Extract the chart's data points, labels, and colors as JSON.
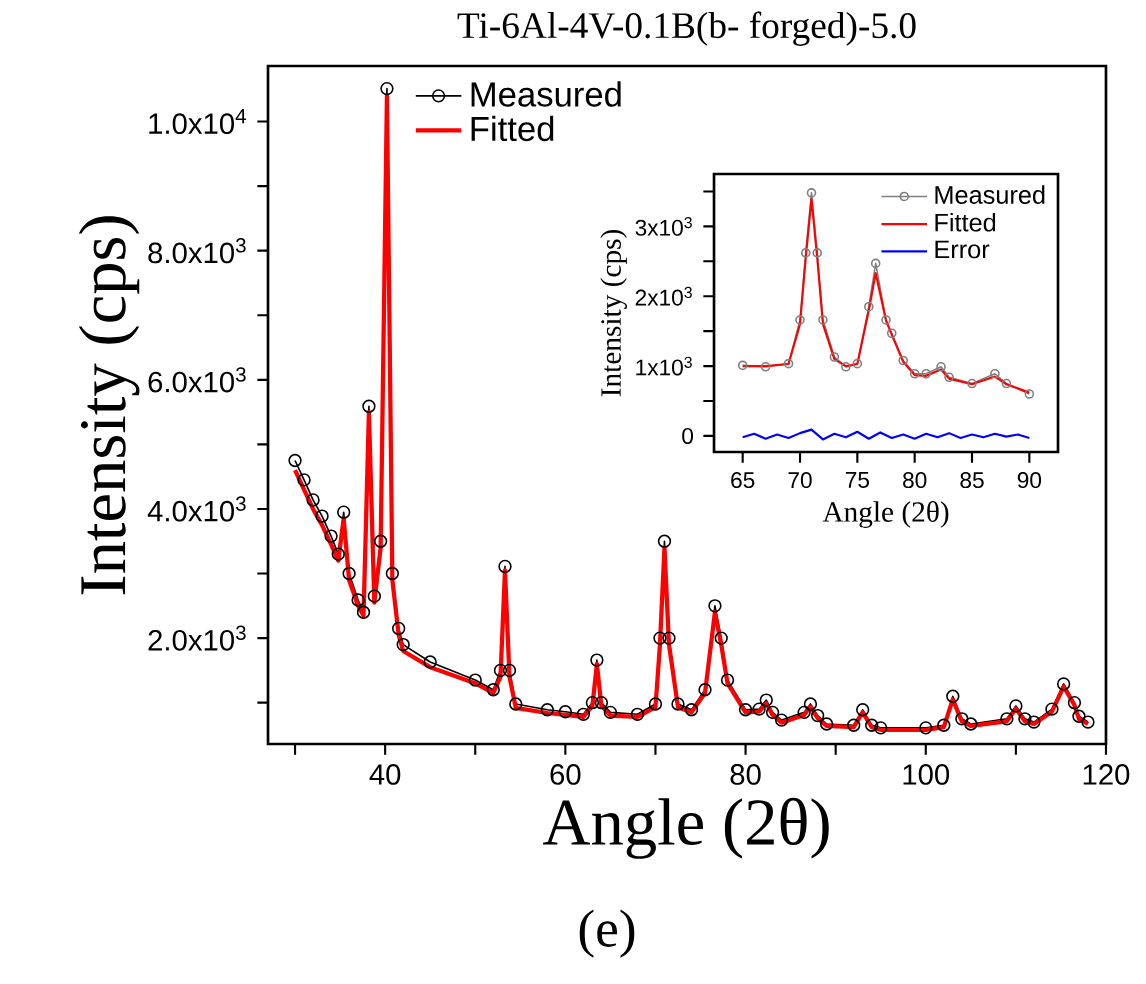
{
  "chart_data": [
    {
      "type": "line",
      "title": "Ti-6Al-4V-0.1B(b- forged)-5.0",
      "xlabel": "Angle (2θ)",
      "ylabel": "Intensity (cps)",
      "annotations": [
        "(e)"
      ],
      "xlim": [
        27,
        120
      ],
      "ylim": [
        360,
        10860
      ],
      "xticks": [
        {
          "value": 30,
          "label": null
        },
        40,
        {
          "value": 50,
          "label": null
        },
        60,
        {
          "value": 70,
          "label": null
        },
        80,
        {
          "value": 90,
          "label": null
        },
        100,
        {
          "value": 110,
          "label": null
        },
        120
      ],
      "yticks": [
        {
          "value": 1000,
          "label": null
        },
        {
          "value": 2000,
          "label": "2.0x10$^{3}$"
        },
        {
          "value": 3000,
          "label": null
        },
        {
          "value": 4000,
          "label": "4.0x10$^{3}$"
        },
        {
          "value": 5000,
          "label": null
        },
        {
          "value": 6000,
          "label": "6.0x10$^{3}$"
        },
        {
          "value": 7000,
          "label": null
        },
        {
          "value": 8000,
          "label": "8.0x10$^{3}$"
        },
        {
          "value": 9000,
          "label": null
        },
        {
          "value": 10000,
          "label": "1.0x10$^{4}$"
        }
      ],
      "legend": "top left",
      "grid": false,
      "series": [
        {
          "name": "Measured",
          "color": "#000000",
          "marker": "circle",
          "x": [
            30,
            31,
            32,
            33,
            34,
            34.8,
            35.4,
            36,
            37,
            37.6,
            38.2,
            38.8,
            39.5,
            40.2,
            40.8,
            41.5,
            42,
            45,
            50,
            52,
            52.8,
            53.3,
            53.8,
            54.5,
            58,
            60,
            62,
            63,
            63.5,
            64,
            65,
            68,
            70,
            70.5,
            71,
            71.5,
            72.5,
            74,
            75.5,
            76.6,
            77.3,
            78,
            80,
            81.5,
            82.3,
            83,
            84,
            86.5,
            87.2,
            88,
            89,
            92,
            93,
            94,
            95,
            100,
            102,
            103,
            104,
            105,
            109,
            110,
            111,
            112,
            114,
            115.3,
            116.5,
            117,
            118
          ],
          "values": [
            4750,
            4450,
            4140,
            3890,
            3580,
            3300,
            3950,
            3000,
            2590,
            2400,
            5590,
            2650,
            3500,
            10510,
            3000,
            2150,
            1900,
            1630,
            1350,
            1200,
            1500,
            3110,
            1500,
            980,
            890,
            860,
            820,
            1000,
            1660,
            1000,
            850,
            820,
            980,
            2000,
            3500,
            2000,
            980,
            890,
            1200,
            2500,
            2000,
            1350,
            890,
            900,
            1040,
            850,
            730,
            850,
            980,
            800,
            670,
            650,
            890,
            650,
            610,
            610,
            650,
            1100,
            750,
            670,
            750,
            950,
            750,
            700,
            900,
            1290,
            1000,
            790,
            700
          ]
        },
        {
          "name": "Fitted",
          "color": "#ff0000",
          "marker": "none",
          "x": [
            30,
            31,
            32,
            33,
            34,
            34.8,
            35.4,
            36,
            37,
            37.6,
            38.2,
            38.8,
            39.5,
            40.2,
            40.8,
            41.5,
            42,
            45,
            50,
            52,
            52.8,
            53.3,
            53.8,
            54.5,
            58,
            60,
            62,
            63,
            63.5,
            64,
            65,
            68,
            70,
            70.5,
            71,
            71.5,
            72.5,
            74,
            75.5,
            76.6,
            77.3,
            78,
            80,
            81.5,
            82.3,
            83,
            84,
            86.5,
            87.2,
            88,
            89,
            92,
            93,
            94,
            95,
            100,
            102,
            103,
            104,
            105,
            109,
            110,
            111,
            112,
            114,
            115.3,
            116.5,
            117,
            118
          ],
          "values": [
            4600,
            4300,
            4000,
            3750,
            3450,
            3200,
            3850,
            2900,
            2500,
            2350,
            5500,
            2550,
            3400,
            10400,
            2900,
            2050,
            1800,
            1550,
            1300,
            1150,
            1400,
            3050,
            1400,
            920,
            840,
            810,
            780,
            950,
            1600,
            950,
            800,
            780,
            930,
            1900,
            3400,
            1900,
            930,
            850,
            1150,
            2400,
            1900,
            1300,
            850,
            860,
            990,
            810,
            690,
            810,
            940,
            760,
            640,
            620,
            850,
            620,
            580,
            580,
            620,
            1050,
            710,
            640,
            710,
            910,
            710,
            670,
            860,
            1250,
            960,
            750,
            670
          ]
        }
      ]
    },
    {
      "type": "line",
      "xlabel": "Angle (2θ)",
      "ylabel": "Intensity (cps)",
      "xlim": [
        62.5,
        92.5
      ],
      "ylim": [
        -230,
        3750
      ],
      "xticks": [
        65,
        70,
        75,
        80,
        85,
        90
      ],
      "yticks": [
        0,
        {
          "value": 500,
          "label": null
        },
        {
          "value": 1000,
          "label": "1x10$^{3}$"
        },
        {
          "value": 1500,
          "label": null
        },
        {
          "value": 2000,
          "label": "2x10$^{3}$"
        },
        {
          "value": 2500,
          "label": null
        },
        {
          "value": 3000,
          "label": "3x10$^{3}$"
        },
        {
          "value": 3500,
          "label": null
        }
      ],
      "legend": "top right",
      "grid": false,
      "series": [
        {
          "name": "Measured",
          "color": "#808080",
          "marker": "circle",
          "x": [
            65,
            67,
            69,
            70,
            70.5,
            71,
            71.5,
            72,
            73,
            74,
            75,
            76,
            76.6,
            77.5,
            78,
            79,
            80,
            81,
            82.3,
            83,
            85,
            87,
            88,
            90
          ],
          "values": [
            1010,
            990,
            1035,
            1660,
            2620,
            3480,
            2620,
            1660,
            1130,
            990,
            1035,
            1850,
            2470,
            1660,
            1470,
            1080,
            890,
            890,
            990,
            840,
            750,
            890,
            750,
            600
          ]
        },
        {
          "name": "Fitted",
          "color": "#ff0000",
          "marker": "none",
          "x": [
            65,
            67,
            69,
            70,
            70.5,
            71,
            71.5,
            72,
            73,
            74,
            75,
            76,
            76.6,
            77.5,
            78,
            79,
            80,
            81,
            82.3,
            83,
            85,
            87,
            88,
            90
          ],
          "values": [
            1000,
            1000,
            1030,
            1600,
            2550,
            3390,
            2550,
            1600,
            1100,
            1000,
            1030,
            1800,
            2330,
            1650,
            1450,
            1060,
            870,
            860,
            950,
            820,
            740,
            850,
            740,
            620
          ]
        },
        {
          "name": "Error",
          "color": "#0000ff",
          "marker": "none",
          "x": [
            65,
            66,
            67,
            68,
            69,
            70,
            71,
            72,
            73,
            74,
            75,
            76,
            77,
            78,
            79,
            80,
            81,
            82,
            83,
            84,
            85,
            86,
            87,
            88,
            89,
            90
          ],
          "values": [
            -20,
            30,
            -40,
            20,
            -30,
            40,
            90,
            -50,
            30,
            -20,
            60,
            -40,
            50,
            -30,
            20,
            -40,
            30,
            -20,
            40,
            -30,
            20,
            -20,
            30,
            -10,
            20,
            -30
          ]
        }
      ]
    }
  ]
}
